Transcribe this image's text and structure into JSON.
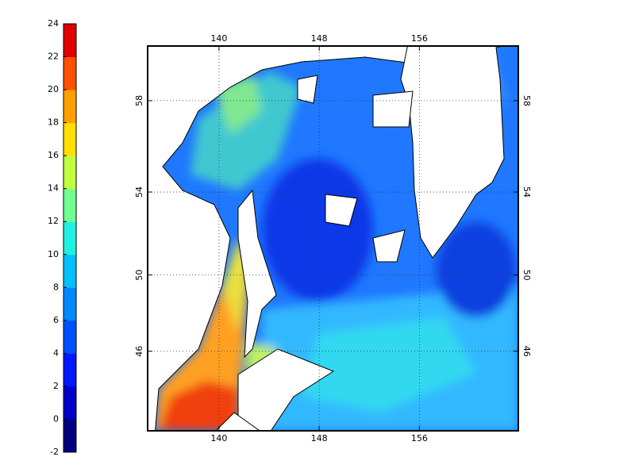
{
  "colorbar": {
    "lim": [
      -2,
      24
    ],
    "ticks": [
      -2,
      0,
      2,
      4,
      6,
      8,
      10,
      12,
      14,
      16,
      18,
      20,
      22,
      24
    ],
    "colors": [
      "#00007f",
      "#0000c8",
      "#0018ff",
      "#0050ff",
      "#0088ff",
      "#00c0ff",
      "#20f0df",
      "#70ff90",
      "#c0ff40",
      "#ffe000",
      "#ffa000",
      "#ff5000",
      "#e00000"
    ]
  },
  "map": {
    "projection": "mercator",
    "xlim": [
      134.3,
      163.9
    ],
    "ylim": [
      41.5,
      60.2
    ],
    "xticks": [
      140,
      148,
      156
    ],
    "yticks": [
      46,
      50,
      54,
      58
    ],
    "grid": true
  }
}
